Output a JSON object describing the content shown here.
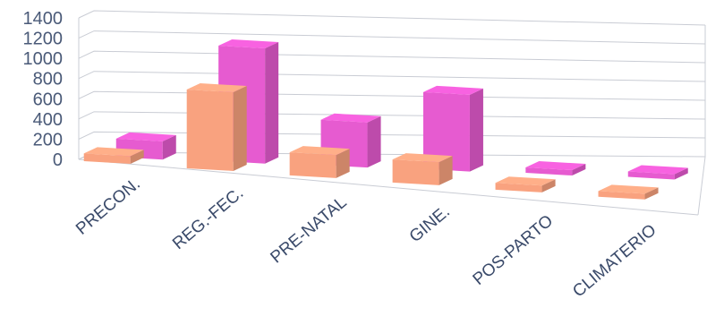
{
  "chart_data": {
    "type": "bar",
    "title": "",
    "xlabel": "",
    "ylabel": "",
    "ylim": [
      0,
      1400
    ],
    "yticks": [
      0,
      200,
      400,
      600,
      800,
      1000,
      1200,
      1400
    ],
    "grid": true,
    "legend": "none",
    "categories": [
      "PRECON.",
      "REG.-FEC.",
      "PRE-NATAL",
      "GINE.",
      "POS-PARTO",
      "CLIMATERIO"
    ],
    "series": [
      {
        "values": [
          80,
          820,
          240,
          240,
          70,
          60
        ],
        "color": "#f9a27f"
      },
      {
        "values": [
          190,
          1200,
          470,
          800,
          40,
          30
        ],
        "color": "#e65bd0"
      }
    ]
  }
}
